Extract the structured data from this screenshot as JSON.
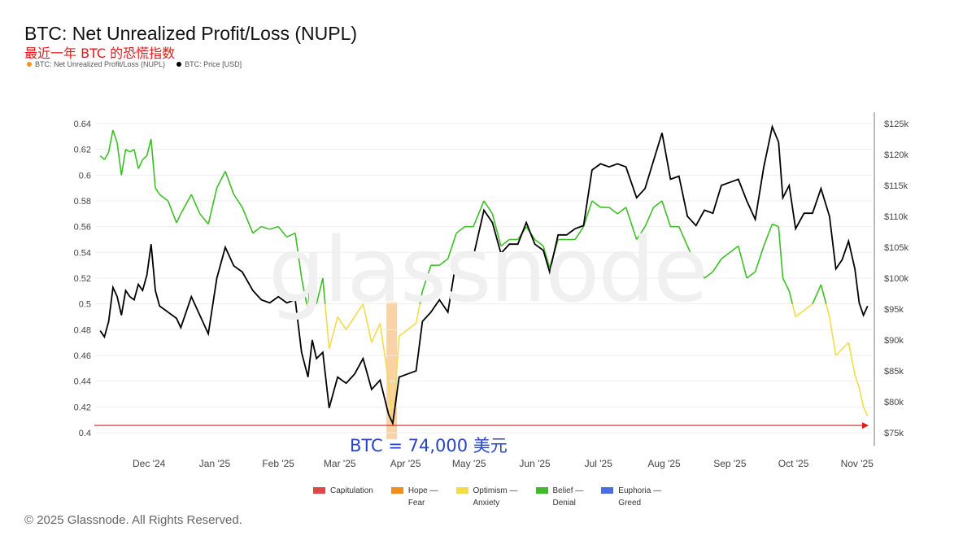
{
  "header": {
    "title": "BTC: Net Unrealized Profit/Loss (NUPL)",
    "subtitle": "最近一年 BTC 的恐慌指数",
    "legend": [
      {
        "label": "BTC: Net Unrealized Profit/Loss (NUPL)",
        "color": "#f7931a"
      },
      {
        "label": "BTC: Price [USD]",
        "color": "#000000"
      }
    ]
  },
  "watermark": "glassnode",
  "annotation": "BTC = 74,000 美元",
  "copyright": "© 2025 Glassnode. All Rights Reserved.",
  "bottom_legend": [
    {
      "label": "Capitulation",
      "color": "#e04848"
    },
    {
      "label": "Hope —\nFear",
      "color": "#f28c1c"
    },
    {
      "label": "Optimism —\nAnxiety",
      "color": "#f3dc4a"
    },
    {
      "label": "Belief —\nDenial",
      "color": "#3cbf24"
    },
    {
      "label": "Euphoria —\nGreed",
      "color": "#4a6de0"
    }
  ],
  "chart_data": {
    "type": "line",
    "title": "BTC: Net Unrealized Profit/Loss (NUPL)",
    "x_tick_labels": [
      "Dec '24",
      "Jan '25",
      "Feb '25",
      "Mar '25",
      "Apr '25",
      "May '25",
      "Jun '25",
      "Jul '25",
      "Aug '25",
      "Sep '25",
      "Oct '25",
      "Nov '25"
    ],
    "left_axis": {
      "ticks": [
        "0.4",
        "0.42",
        "0.44",
        "0.46",
        "0.48",
        "0.5",
        "0.52",
        "0.54",
        "0.56",
        "0.58",
        "0.6",
        "0.62",
        "0.64"
      ],
      "range": [
        0.4,
        0.64
      ]
    },
    "right_axis": {
      "ticks": [
        "$75k",
        "$80k",
        "$85k",
        "$90k",
        "$95k",
        "$100k",
        "$105k",
        "$110k",
        "$115k",
        "$120k",
        "$125k"
      ],
      "range": [
        75000,
        125000
      ]
    },
    "grid": true,
    "series": [
      {
        "name": "BTC: Net Unrealized Profit/Loss (NUPL)",
        "axis": "left",
        "colored_by_zone": {
          "above_0.5": "#3cbf24",
          "below_0.5": "#f3dc4a"
        },
        "points": [
          [
            "2024-11-22",
            0.615
          ],
          [
            "2024-11-24",
            0.612
          ],
          [
            "2024-11-26",
            0.618
          ],
          [
            "2024-11-28",
            0.635
          ],
          [
            "2024-11-30",
            0.625
          ],
          [
            "2024-12-02",
            0.6
          ],
          [
            "2024-12-04",
            0.62
          ],
          [
            "2024-12-06",
            0.618
          ],
          [
            "2024-12-08",
            0.62
          ],
          [
            "2024-12-10",
            0.605
          ],
          [
            "2024-12-12",
            0.612
          ],
          [
            "2024-12-14",
            0.615
          ],
          [
            "2024-12-16",
            0.628
          ],
          [
            "2024-12-18",
            0.59
          ],
          [
            "2024-12-20",
            0.585
          ],
          [
            "2024-12-24",
            0.58
          ],
          [
            "2024-12-28",
            0.563
          ],
          [
            "2024-12-30",
            0.57
          ],
          [
            "2025-01-04",
            0.585
          ],
          [
            "2025-01-08",
            0.57
          ],
          [
            "2025-01-12",
            0.562
          ],
          [
            "2025-01-16",
            0.59
          ],
          [
            "2025-01-20",
            0.603
          ],
          [
            "2025-01-24",
            0.585
          ],
          [
            "2025-01-28",
            0.575
          ],
          [
            "2025-02-02",
            0.555
          ],
          [
            "2025-02-06",
            0.56
          ],
          [
            "2025-02-10",
            0.558
          ],
          [
            "2025-02-14",
            0.56
          ],
          [
            "2025-02-18",
            0.552
          ],
          [
            "2025-02-22",
            0.555
          ],
          [
            "2025-02-25",
            0.52
          ],
          [
            "2025-02-28",
            0.495
          ],
          [
            "2025-03-02",
            0.54
          ],
          [
            "2025-03-04",
            0.5
          ],
          [
            "2025-03-07",
            0.52
          ],
          [
            "2025-03-10",
            0.465
          ],
          [
            "2025-03-14",
            0.49
          ],
          [
            "2025-03-18",
            0.48
          ],
          [
            "2025-03-22",
            0.49
          ],
          [
            "2025-03-26",
            0.5
          ],
          [
            "2025-03-30",
            0.47
          ],
          [
            "2025-04-03",
            0.485
          ],
          [
            "2025-04-07",
            0.44
          ],
          [
            "2025-04-09",
            0.405
          ],
          [
            "2025-04-12",
            0.475
          ],
          [
            "2025-04-16",
            0.48
          ],
          [
            "2025-04-20",
            0.485
          ],
          [
            "2025-04-23",
            0.51
          ],
          [
            "2025-04-27",
            0.53
          ],
          [
            "2025-05-01",
            0.53
          ],
          [
            "2025-05-05",
            0.535
          ],
          [
            "2025-05-09",
            0.555
          ],
          [
            "2025-05-13",
            0.56
          ],
          [
            "2025-05-17",
            0.56
          ],
          [
            "2025-05-22",
            0.58
          ],
          [
            "2025-05-26",
            0.57
          ],
          [
            "2025-05-30",
            0.545
          ],
          [
            "2025-06-03",
            0.55
          ],
          [
            "2025-06-07",
            0.55
          ],
          [
            "2025-06-11",
            0.56
          ],
          [
            "2025-06-15",
            0.55
          ],
          [
            "2025-06-19",
            0.545
          ],
          [
            "2025-06-22",
            0.528
          ],
          [
            "2025-06-26",
            0.55
          ],
          [
            "2025-06-30",
            0.55
          ],
          [
            "2025-07-04",
            0.55
          ],
          [
            "2025-07-08",
            0.56
          ],
          [
            "2025-07-12",
            0.58
          ],
          [
            "2025-07-16",
            0.575
          ],
          [
            "2025-07-20",
            0.575
          ],
          [
            "2025-07-24",
            0.57
          ],
          [
            "2025-07-28",
            0.575
          ],
          [
            "2025-08-02",
            0.55
          ],
          [
            "2025-08-06",
            0.56
          ],
          [
            "2025-08-10",
            0.575
          ],
          [
            "2025-08-14",
            0.58
          ],
          [
            "2025-08-18",
            0.56
          ],
          [
            "2025-08-22",
            0.56
          ],
          [
            "2025-08-26",
            0.545
          ],
          [
            "2025-08-30",
            0.53
          ],
          [
            "2025-09-03",
            0.52
          ],
          [
            "2025-09-07",
            0.525
          ],
          [
            "2025-09-11",
            0.535
          ],
          [
            "2025-09-15",
            0.54
          ],
          [
            "2025-09-19",
            0.545
          ],
          [
            "2025-09-23",
            0.52
          ],
          [
            "2025-09-27",
            0.525
          ],
          [
            "2025-10-01",
            0.545
          ],
          [
            "2025-10-05",
            0.562
          ],
          [
            "2025-10-08",
            0.56
          ],
          [
            "2025-10-10",
            0.52
          ],
          [
            "2025-10-13",
            0.51
          ],
          [
            "2025-10-16",
            0.49
          ],
          [
            "2025-10-20",
            0.495
          ],
          [
            "2025-10-24",
            0.5
          ],
          [
            "2025-10-28",
            0.515
          ],
          [
            "2025-11-01",
            0.49
          ],
          [
            "2025-11-04",
            0.46
          ],
          [
            "2025-11-07",
            0.465
          ],
          [
            "2025-11-10",
            0.47
          ],
          [
            "2025-11-13",
            0.445
          ],
          [
            "2025-11-15",
            0.435
          ],
          [
            "2025-11-17",
            0.42
          ],
          [
            "2025-11-19",
            0.413
          ]
        ]
      },
      {
        "name": "BTC: Price [USD]",
        "axis": "right",
        "color": "#000000",
        "points": [
          [
            "2024-11-22",
            91500
          ],
          [
            "2024-11-24",
            90500
          ],
          [
            "2024-11-26",
            93000
          ],
          [
            "2024-11-28",
            98500
          ],
          [
            "2024-11-30",
            97000
          ],
          [
            "2024-12-02",
            94000
          ],
          [
            "2024-12-04",
            98000
          ],
          [
            "2024-12-06",
            97000
          ],
          [
            "2024-12-08",
            96500
          ],
          [
            "2024-12-10",
            99000
          ],
          [
            "2024-12-12",
            98000
          ],
          [
            "2024-12-14",
            100500
          ],
          [
            "2024-12-16",
            105500
          ],
          [
            "2024-12-18",
            98000
          ],
          [
            "2024-12-20",
            95500
          ],
          [
            "2024-12-24",
            94500
          ],
          [
            "2024-12-28",
            93500
          ],
          [
            "2024-12-30",
            92000
          ],
          [
            "2025-01-04",
            97000
          ],
          [
            "2025-01-08",
            94000
          ],
          [
            "2025-01-12",
            91000
          ],
          [
            "2025-01-16",
            100000
          ],
          [
            "2025-01-20",
            105000
          ],
          [
            "2025-01-24",
            102000
          ],
          [
            "2025-01-28",
            101000
          ],
          [
            "2025-02-02",
            98000
          ],
          [
            "2025-02-06",
            96500
          ],
          [
            "2025-02-10",
            96000
          ],
          [
            "2025-02-14",
            97000
          ],
          [
            "2025-02-18",
            96000
          ],
          [
            "2025-02-22",
            96500
          ],
          [
            "2025-02-25",
            88000
          ],
          [
            "2025-02-28",
            84000
          ],
          [
            "2025-03-02",
            90000
          ],
          [
            "2025-03-04",
            87000
          ],
          [
            "2025-03-07",
            88000
          ],
          [
            "2025-03-10",
            79000
          ],
          [
            "2025-03-14",
            84000
          ],
          [
            "2025-03-18",
            83000
          ],
          [
            "2025-03-22",
            84500
          ],
          [
            "2025-03-26",
            87000
          ],
          [
            "2025-03-30",
            82000
          ],
          [
            "2025-04-03",
            83500
          ],
          [
            "2025-04-07",
            78000
          ],
          [
            "2025-04-09",
            76500
          ],
          [
            "2025-04-12",
            84000
          ],
          [
            "2025-04-16",
            84500
          ],
          [
            "2025-04-20",
            85000
          ],
          [
            "2025-04-23",
            93000
          ],
          [
            "2025-04-27",
            94500
          ],
          [
            "2025-05-01",
            96500
          ],
          [
            "2025-05-05",
            94500
          ],
          [
            "2025-05-09",
            103000
          ],
          [
            "2025-05-13",
            104000
          ],
          [
            "2025-05-17",
            103500
          ],
          [
            "2025-05-22",
            111000
          ],
          [
            "2025-05-26",
            109000
          ],
          [
            "2025-05-30",
            104000
          ],
          [
            "2025-06-03",
            105500
          ],
          [
            "2025-06-07",
            105500
          ],
          [
            "2025-06-11",
            109000
          ],
          [
            "2025-06-15",
            105500
          ],
          [
            "2025-06-19",
            104500
          ],
          [
            "2025-06-22",
            101000
          ],
          [
            "2025-06-26",
            107000
          ],
          [
            "2025-06-30",
            107000
          ],
          [
            "2025-07-04",
            108000
          ],
          [
            "2025-07-08",
            108500
          ],
          [
            "2025-07-12",
            117500
          ],
          [
            "2025-07-16",
            118500
          ],
          [
            "2025-07-20",
            118000
          ],
          [
            "2025-07-24",
            118500
          ],
          [
            "2025-07-28",
            118000
          ],
          [
            "2025-08-02",
            113000
          ],
          [
            "2025-08-06",
            114500
          ],
          [
            "2025-08-10",
            119000
          ],
          [
            "2025-08-14",
            123500
          ],
          [
            "2025-08-18",
            116000
          ],
          [
            "2025-08-22",
            116500
          ],
          [
            "2025-08-26",
            110000
          ],
          [
            "2025-08-30",
            108500
          ],
          [
            "2025-09-03",
            111000
          ],
          [
            "2025-09-07",
            110500
          ],
          [
            "2025-09-11",
            115000
          ],
          [
            "2025-09-15",
            115500
          ],
          [
            "2025-09-19",
            116000
          ],
          [
            "2025-09-23",
            112500
          ],
          [
            "2025-09-27",
            109500
          ],
          [
            "2025-10-01",
            118000
          ],
          [
            "2025-10-05",
            124500
          ],
          [
            "2025-10-08",
            122000
          ],
          [
            "2025-10-10",
            113000
          ],
          [
            "2025-10-13",
            115000
          ],
          [
            "2025-10-16",
            108000
          ],
          [
            "2025-10-20",
            110500
          ],
          [
            "2025-10-24",
            110500
          ],
          [
            "2025-10-28",
            114500
          ],
          [
            "2025-11-01",
            110000
          ],
          [
            "2025-11-04",
            101500
          ],
          [
            "2025-11-07",
            103000
          ],
          [
            "2025-11-10",
            106000
          ],
          [
            "2025-11-13",
            101500
          ],
          [
            "2025-11-15",
            96000
          ],
          [
            "2025-11-17",
            94000
          ],
          [
            "2025-11-19",
            95500
          ]
        ]
      }
    ],
    "reference_lines": [
      {
        "value": 0.405,
        "axis": "left",
        "color": "#e0191c",
        "style": "arrow"
      }
    ],
    "highlight_band": {
      "from": "2025-04-06",
      "to": "2025-04-11",
      "color": "#f7c080"
    }
  }
}
